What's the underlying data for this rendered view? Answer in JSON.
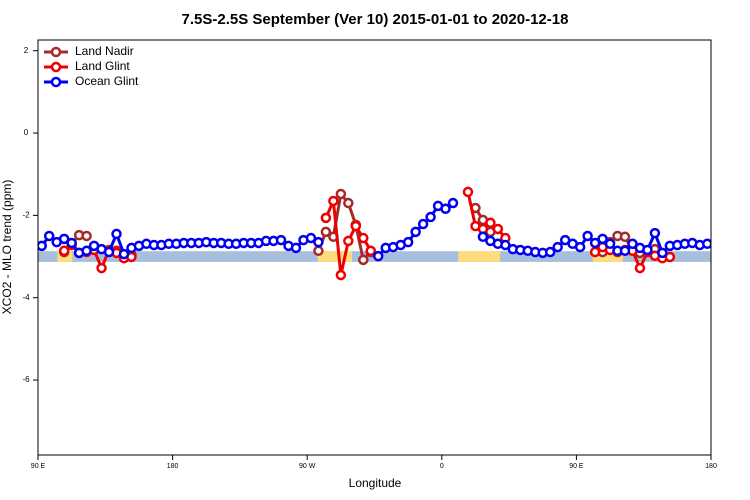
{
  "chart_data": {
    "type": "line",
    "title": "7.5S-2.5S September (Ver 10)   2015-01-01 to 2020-12-18",
    "xlabel": "Longitude",
    "ylabel": "XCO2 - MLO trend (ppm)",
    "xlim": [
      90,
      540
    ],
    "ylim": [
      -7.82,
      2.26
    ],
    "xticks": [
      {
        "value": 90,
        "label": "90 E"
      },
      {
        "value": 180,
        "label": "180"
      },
      {
        "value": 270,
        "label": "90 W"
      },
      {
        "value": 360,
        "label": "0"
      },
      {
        "value": 450,
        "label": "90 E"
      },
      {
        "value": 540,
        "label": "180"
      }
    ],
    "yticks": [
      -6,
      -4,
      -2,
      0,
      2
    ],
    "legend": "top-left",
    "band_ylim": [
      -3.13,
      -2.87
    ],
    "band_color": "#a7bfdd",
    "land_color": "#fedc7d",
    "land_spans": [
      [
        103,
        113
      ],
      [
        277,
        300
      ],
      [
        371,
        399
      ],
      [
        461,
        481
      ]
    ],
    "x": [
      92.5,
      97.5,
      102.5,
      107.5,
      112.5,
      117.5,
      122.5,
      127.5,
      132.5,
      137.5,
      142.5,
      147.5,
      152.5,
      157.5,
      162.5,
      167.5,
      172.5,
      177.5,
      182.5,
      187.5,
      192.5,
      197.5,
      202.5,
      207.5,
      212.5,
      217.5,
      222.5,
      227.5,
      232.5,
      237.5,
      242.5,
      247.5,
      252.5,
      257.5,
      262.5,
      267.5,
      272.5,
      277.5,
      282.5,
      287.5,
      292.5,
      297.5,
      302.5,
      307.5,
      312.5,
      317.5,
      322.5,
      327.5,
      332.5,
      337.5,
      342.5,
      347.5,
      352.5,
      357.5,
      362.5,
      367.5,
      372.5,
      377.5,
      382.5,
      387.5,
      392.5,
      397.5,
      402.5,
      407.5,
      412.5,
      417.5,
      422.5,
      427.5,
      432.5,
      437.5,
      442.5,
      447.5,
      452.5,
      457.5,
      462.5,
      467.5,
      472.5,
      477.5,
      482.5,
      487.5,
      492.5,
      497.5,
      502.5,
      507.5,
      512.5,
      517.5,
      522.5,
      527.5,
      532.5,
      537.5
    ],
    "series": [
      {
        "name": "Land Nadir",
        "color": "#a52a2a",
        "values": [
          null,
          null,
          null,
          -2.89,
          -2.7,
          -2.48,
          -2.5,
          null,
          null,
          null,
          -2.86,
          -3.01,
          -2.96,
          null,
          null,
          null,
          null,
          null,
          null,
          null,
          null,
          null,
          null,
          null,
          null,
          null,
          null,
          null,
          null,
          null,
          null,
          null,
          null,
          null,
          null,
          null,
          null,
          -2.86,
          -2.4,
          -2.52,
          -1.48,
          -1.7,
          -2.23,
          -3.08,
          -2.89,
          null,
          null,
          null,
          null,
          null,
          null,
          null,
          null,
          null,
          null,
          null,
          null,
          null,
          -1.82,
          -2.11,
          -2.4,
          null,
          null,
          null,
          null,
          null,
          null,
          null,
          null,
          null,
          null,
          null,
          null,
          null,
          null,
          -2.89,
          -2.65,
          -2.5,
          -2.52,
          -2.86,
          -2.91,
          null,
          -2.82,
          -2.96,
          null,
          null,
          null,
          null,
          null,
          null
        ]
      },
      {
        "name": "Land Glint",
        "color": "#ee0000",
        "values": [
          null,
          null,
          null,
          -2.86,
          -2.72,
          -2.91,
          -2.89,
          -2.84,
          -3.28,
          -2.84,
          -2.91,
          -3.04,
          -3.01,
          null,
          null,
          null,
          null,
          null,
          null,
          null,
          null,
          null,
          null,
          null,
          null,
          null,
          null,
          null,
          null,
          null,
          null,
          null,
          null,
          null,
          null,
          null,
          null,
          null,
          -2.06,
          -1.65,
          -3.45,
          -2.62,
          -2.26,
          -2.55,
          -2.86,
          null,
          null,
          null,
          null,
          null,
          null,
          null,
          null,
          null,
          null,
          null,
          null,
          -1.43,
          -2.26,
          -2.33,
          -2.18,
          -2.33,
          -2.55,
          null,
          null,
          null,
          null,
          null,
          null,
          null,
          null,
          null,
          null,
          null,
          -2.89,
          -2.77,
          -2.84,
          -2.89,
          -2.84,
          -2.86,
          -3.28,
          -2.89,
          -2.98,
          -3.04,
          -3.01,
          null,
          null,
          null,
          null,
          null
        ]
      },
      {
        "name": "Ocean Glint",
        "color": "#0000ee",
        "values": [
          -2.74,
          -2.5,
          -2.65,
          -2.57,
          -2.67,
          -2.91,
          -2.86,
          -2.74,
          -2.82,
          -2.89,
          -2.45,
          -2.94,
          -2.79,
          -2.74,
          -2.69,
          -2.72,
          -2.72,
          -2.69,
          -2.69,
          -2.67,
          -2.67,
          -2.67,
          -2.65,
          -2.67,
          -2.67,
          -2.69,
          -2.69,
          -2.67,
          -2.67,
          -2.67,
          -2.62,
          -2.62,
          -2.6,
          -2.74,
          -2.79,
          -2.6,
          -2.55,
          -2.65,
          null,
          null,
          null,
          null,
          null,
          null,
          null,
          -2.99,
          -2.79,
          -2.77,
          -2.72,
          -2.65,
          -2.4,
          -2.21,
          -2.04,
          -1.77,
          -1.84,
          -1.7,
          null,
          null,
          null,
          -2.52,
          -2.62,
          -2.69,
          -2.72,
          -2.82,
          -2.84,
          -2.86,
          -2.89,
          -2.91,
          -2.89,
          -2.77,
          -2.6,
          -2.69,
          -2.77,
          -2.5,
          -2.67,
          -2.57,
          -2.69,
          -2.86,
          -2.86,
          -2.69,
          -2.79,
          -2.84,
          -2.43,
          -2.91,
          -2.74,
          -2.72,
          -2.69,
          -2.67,
          -2.72,
          -2.69
        ]
      }
    ]
  }
}
